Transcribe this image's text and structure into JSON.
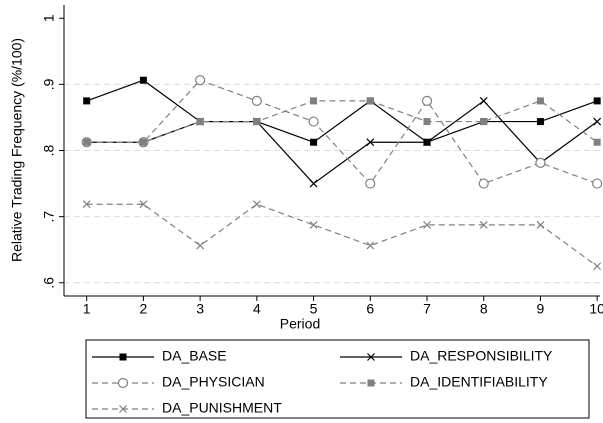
{
  "chart_data": {
    "type": "line",
    "x_label": "Period",
    "y_label": "Relative Trading Frequency (%/100)",
    "x": [
      1,
      2,
      3,
      4,
      5,
      6,
      7,
      8,
      9,
      10
    ],
    "xlim": [
      0.6,
      10.05
    ],
    "xticks": [
      1,
      2,
      3,
      4,
      5,
      6,
      7,
      8,
      9,
      10
    ],
    "ylim": [
      0.58,
      1.02
    ],
    "yticks": [
      {
        "value": 0.6,
        "label": ".6"
      },
      {
        "value": 0.7,
        "label": ".7"
      },
      {
        "value": 0.8,
        "label": ".8"
      },
      {
        "value": 0.9,
        "label": ".9"
      },
      {
        "value": 1,
        "label": "1"
      }
    ],
    "grid": true,
    "legend": "bottom",
    "series": [
      {
        "name": "DA_BASE",
        "color": "#000000",
        "marker": "square",
        "dashed": false,
        "values": [
          0.875,
          0.90625,
          0.84375,
          0.84375,
          0.8125,
          0.875,
          0.8125,
          0.84375,
          0.84375,
          0.875
        ]
      },
      {
        "name": "DA_RESPONSIBILITY",
        "color": "#000000",
        "marker": "x",
        "dashed": false,
        "values": [
          0.8125,
          0.8125,
          0.84375,
          0.84375,
          0.75,
          0.8125,
          0.8125,
          0.875,
          0.78125,
          0.84375
        ]
      },
      {
        "name": "DA_PHYSICIAN",
        "color": "#808080",
        "marker": "circle",
        "dashed": true,
        "values": [
          0.8125,
          0.8125,
          0.90625,
          0.875,
          0.84375,
          0.75,
          0.875,
          0.75,
          0.78125,
          0.75
        ]
      },
      {
        "name": "DA_IDENTIFIABILITY",
        "color": "#808080",
        "marker": "square",
        "dashed": true,
        "values": [
          0.8125,
          0.8125,
          0.84375,
          0.84375,
          0.875,
          0.875,
          0.84375,
          0.84375,
          0.875,
          0.8125
        ]
      },
      {
        "name": "DA_PUNISHMENT",
        "color": "#808080",
        "marker": "x",
        "dashed": true,
        "values": [
          0.71875,
          0.71875,
          0.65625,
          0.71875,
          0.6875,
          0.65625,
          0.6875,
          0.6875,
          0.6875,
          0.625
        ]
      }
    ]
  }
}
